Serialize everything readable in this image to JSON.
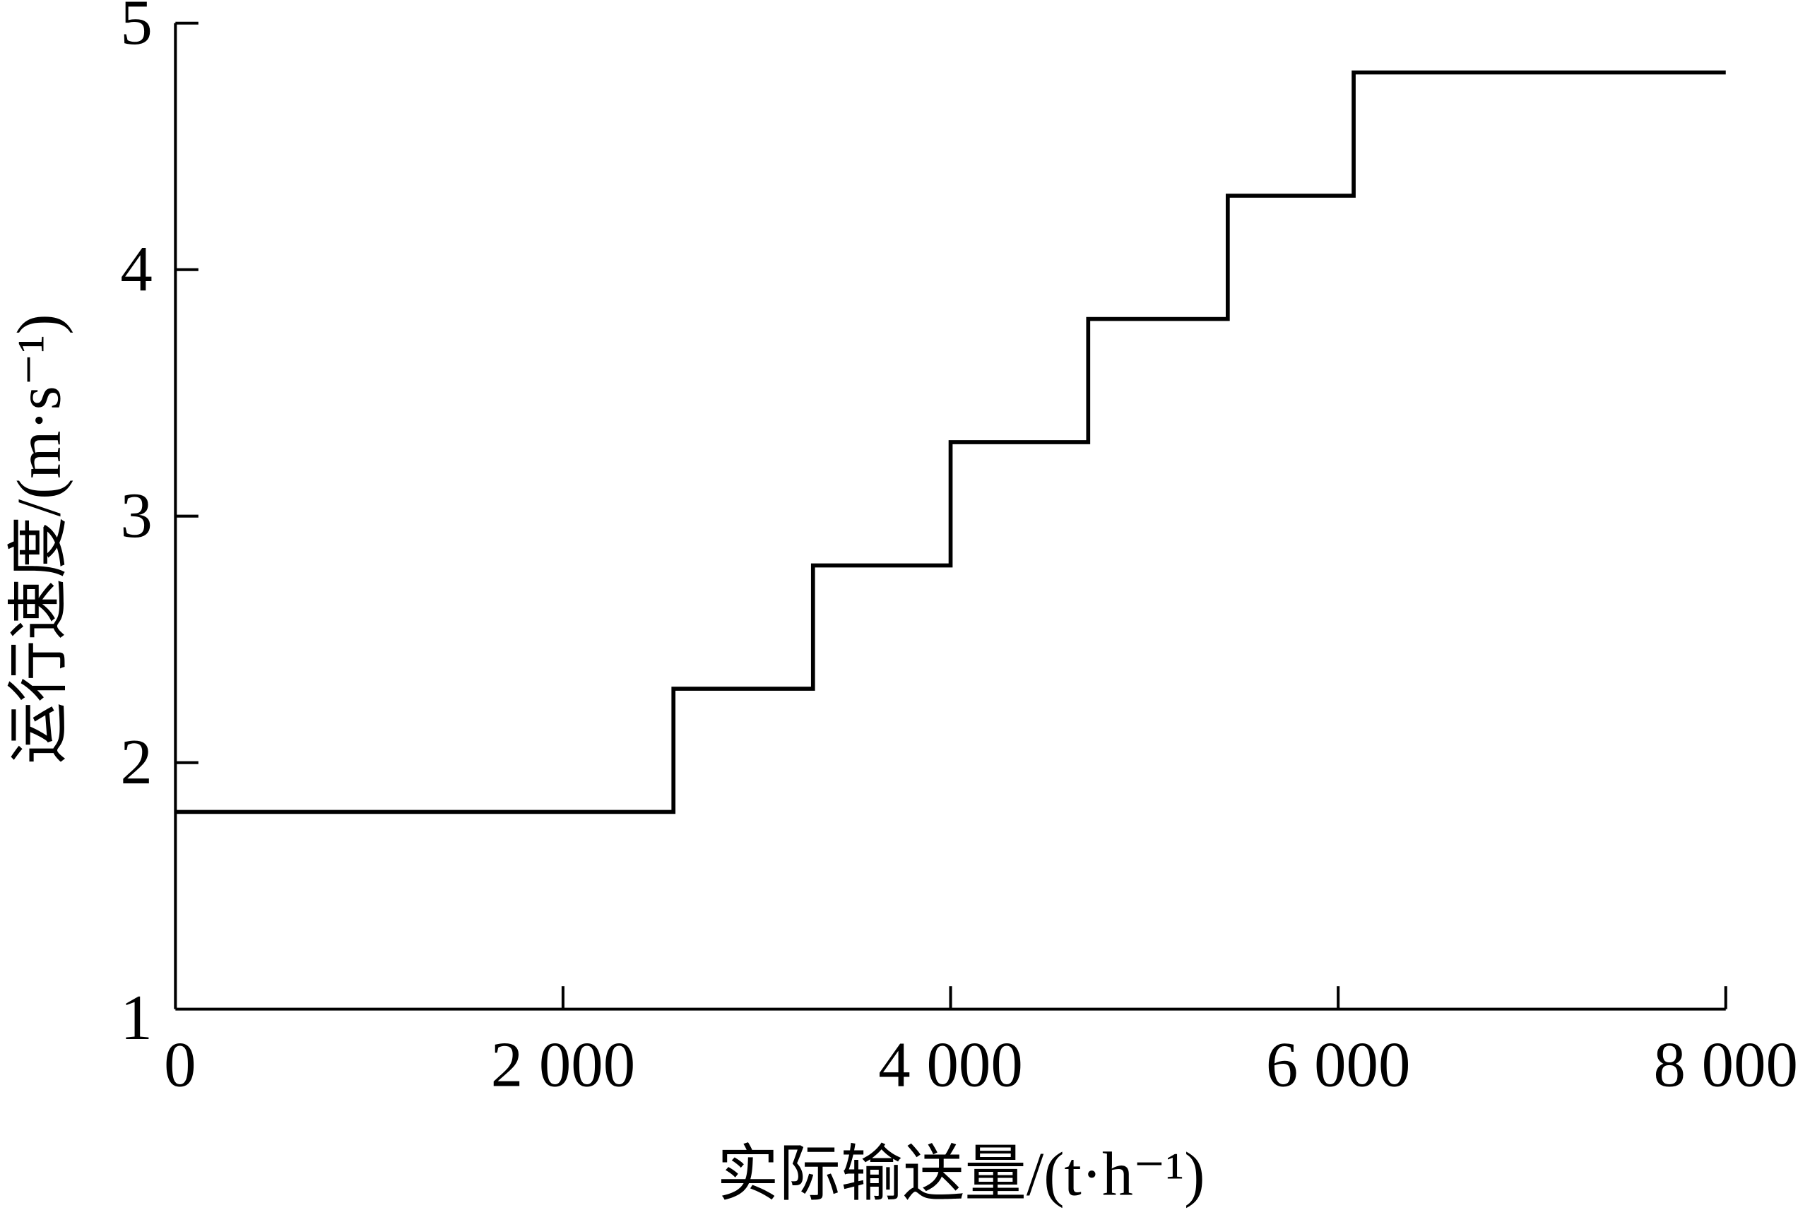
{
  "chart_data": {
    "type": "line",
    "style": "step",
    "title": "",
    "xlabel": "实际输送量/(t·h⁻¹)",
    "ylabel": "运行速度/(m·s⁻¹)",
    "xlim": [
      0,
      8000
    ],
    "ylim": [
      1,
      5
    ],
    "xticks": [
      0,
      2000,
      4000,
      6000,
      8000
    ],
    "xtick_labels": [
      "0",
      "2 000",
      "4 000",
      "6 000",
      "8 000"
    ],
    "yticks": [
      1,
      2,
      3,
      4,
      5
    ],
    "ytick_labels": [
      "1",
      "2",
      "3",
      "4",
      "5"
    ],
    "grid": false,
    "line_color": "#000000",
    "series": [
      {
        "x": [
          0,
          2570,
          2570,
          3290,
          3290,
          4000,
          4000,
          4710,
          4710,
          5430,
          5430,
          6080,
          6080,
          8000
        ],
        "y": [
          1.8,
          1.8,
          2.3,
          2.3,
          2.8,
          2.8,
          3.3,
          3.3,
          3.8,
          3.8,
          4.3,
          4.3,
          4.8,
          4.8
        ]
      }
    ]
  }
}
